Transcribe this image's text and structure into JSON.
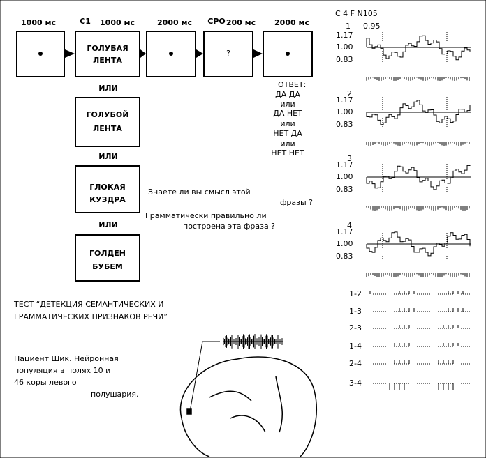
{
  "timeline": {
    "durations": [
      "1000 мс",
      "1000 мс",
      "2000 мс",
      "200 мс",
      "2000 мс"
    ],
    "markers": [
      "С1",
      "СРО"
    ],
    "probe": "?"
  },
  "stimuli": [
    [
      "ГОЛУБАЯ",
      "ЛЕНТА"
    ],
    [
      "ГОЛУБОЙ",
      "ЛЕНТА"
    ],
    [
      "ГЛОКАЯ",
      "КУЗДРА"
    ],
    [
      "ГОЛДЕН",
      "БУБЕМ"
    ]
  ],
  "connector": "ИЛИ",
  "answer": {
    "title": "ОТВЕТ:",
    "lines": [
      "ДА   ДА",
      "или",
      "ДА НЕТ",
      "или",
      "НЕТ ДА",
      "или",
      "НЕТ НЕТ"
    ]
  },
  "question": [
    "Знаете ли вы смысл этой",
    "фразы ?",
    "Грамматически правильно ли",
    "построена эта фраза ?"
  ],
  "test_caption": [
    "ТЕСТ “ДЕТЕКЦИЯ СЕМАНТИЧЕСКИХ И",
    "ГРАММАТИЧЕСКИХ ПРИЗНАКОВ РЕЧИ”"
  ],
  "patient_caption": [
    "Пациент Шик. Нейронная",
    "популяция в полях 10 и",
    "46 коры левого",
    "полушария."
  ],
  "recording": {
    "header": "С 4 F N105",
    "first_label": "1",
    "first_value": "0.95",
    "panels": [
      "1",
      "2",
      "3",
      "4"
    ],
    "yticks": [
      "1.17",
      "1.00",
      "0.83"
    ],
    "pairs": [
      "1-2",
      "1-3",
      "2-3",
      "1-4",
      "2-4",
      "3-4"
    ]
  }
}
